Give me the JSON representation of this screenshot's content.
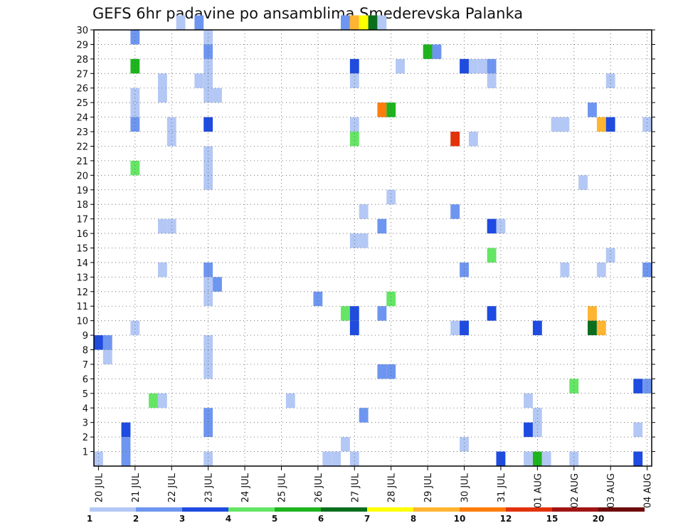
{
  "chart_data": {
    "type": "heatmap",
    "title": "GEFS 6hr padavine po ansamblima Smederevska Palanka",
    "xlabel": "",
    "ylabel": "",
    "x_ticks": [
      "20 JUL",
      "21 JUL",
      "22 JUL",
      "23 JUL",
      "24 JUL",
      "25 JUL",
      "26 JUL",
      "27 JUL",
      "28 JUL",
      "29 JUL",
      "30 JUL",
      "31 JUL",
      "01 AUG",
      "02 AUG",
      "03 AUG",
      "04 AUG"
    ],
    "x_range": [
      0,
      61
    ],
    "y_ticks": [
      1,
      2,
      3,
      4,
      5,
      6,
      7,
      8,
      9,
      10,
      11,
      12,
      13,
      14,
      15,
      16,
      17,
      18,
      19,
      20,
      21,
      22,
      23,
      24,
      25,
      26,
      27,
      28,
      29,
      30
    ],
    "y_range": [
      0,
      30
    ],
    "grid": true,
    "legend": {
      "position": "bottom",
      "labels": [
        "1",
        "2",
        "3",
        "4",
        "5",
        "6",
        "7",
        "8",
        "10",
        "12",
        "15",
        "20"
      ],
      "colors": [
        "#b4c8f5",
        "#6e96f0",
        "#1e4be1",
        "#64e664",
        "#1eb41e",
        "#0a6e1e",
        "#ffff00",
        "#ffb432",
        "#ff7d0a",
        "#e1320a",
        "#a01414",
        "#6e0a0a"
      ],
      "thresholds": [
        1,
        2,
        3,
        4,
        5,
        6,
        7,
        8,
        10,
        12,
        15,
        20
      ]
    },
    "cells": [
      [
        30,
        9,
        1
      ],
      [
        30,
        11,
        2
      ],
      [
        30,
        27,
        2
      ],
      [
        30,
        28,
        8
      ],
      [
        30,
        29,
        7
      ],
      [
        30,
        30,
        6
      ],
      [
        30,
        31,
        1
      ],
      [
        29,
        4,
        2
      ],
      [
        29,
        12,
        1
      ],
      [
        28,
        12,
        2
      ],
      [
        28,
        36,
        5
      ],
      [
        28,
        37,
        2
      ],
      [
        27,
        4,
        5
      ],
      [
        27,
        12,
        1
      ],
      [
        27,
        28,
        3
      ],
      [
        27,
        33,
        1
      ],
      [
        27,
        40,
        3
      ],
      [
        27,
        41,
        1
      ],
      [
        27,
        42,
        1
      ],
      [
        27,
        43,
        2
      ],
      [
        26,
        7,
        1
      ],
      [
        26,
        11,
        1
      ],
      [
        26,
        12,
        1
      ],
      [
        26,
        28,
        1
      ],
      [
        26,
        43,
        1
      ],
      [
        26,
        56,
        1
      ],
      [
        25,
        4,
        1
      ],
      [
        25,
        7,
        1
      ],
      [
        25,
        12,
        1
      ],
      [
        25,
        13,
        1
      ],
      [
        24,
        4,
        1
      ],
      [
        24,
        31,
        10
      ],
      [
        24,
        32,
        5
      ],
      [
        24,
        54,
        2
      ],
      [
        23,
        4,
        2
      ],
      [
        23,
        8,
        1
      ],
      [
        23,
        12,
        3
      ],
      [
        23,
        28,
        1
      ],
      [
        23,
        50,
        1
      ],
      [
        23,
        51,
        1
      ],
      [
        23,
        55,
        8
      ],
      [
        23,
        56,
        3
      ],
      [
        23,
        60,
        1
      ],
      [
        22,
        8,
        1
      ],
      [
        22,
        28,
        4
      ],
      [
        22,
        39,
        12
      ],
      [
        22,
        41,
        1
      ],
      [
        21,
        12,
        1
      ],
      [
        20,
        4,
        4
      ],
      [
        20,
        12,
        1
      ],
      [
        19,
        12,
        1
      ],
      [
        19,
        53,
        1
      ],
      [
        18,
        32,
        1
      ],
      [
        17,
        29,
        1
      ],
      [
        17,
        39,
        2
      ],
      [
        16,
        7,
        1
      ],
      [
        16,
        8,
        1
      ],
      [
        16,
        31,
        2
      ],
      [
        16,
        43,
        3
      ],
      [
        16,
        44,
        1
      ],
      [
        15,
        28,
        1
      ],
      [
        15,
        29,
        1
      ],
      [
        14,
        43,
        4
      ],
      [
        14,
        56,
        1
      ],
      [
        13,
        7,
        1
      ],
      [
        13,
        12,
        2
      ],
      [
        13,
        40,
        2
      ],
      [
        13,
        51,
        1
      ],
      [
        13,
        55,
        1
      ],
      [
        13,
        60,
        2
      ],
      [
        12,
        12,
        1
      ],
      [
        12,
        13,
        2
      ],
      [
        11,
        12,
        1
      ],
      [
        11,
        24,
        2
      ],
      [
        11,
        32,
        4
      ],
      [
        10,
        27,
        4
      ],
      [
        10,
        28,
        3
      ],
      [
        10,
        31,
        2
      ],
      [
        10,
        43,
        3
      ],
      [
        10,
        54,
        8
      ],
      [
        9,
        4,
        1
      ],
      [
        9,
        28,
        3
      ],
      [
        9,
        39,
        1
      ],
      [
        9,
        40,
        3
      ],
      [
        9,
        48,
        3
      ],
      [
        9,
        54,
        6
      ],
      [
        9,
        55,
        8
      ],
      [
        8,
        0,
        3
      ],
      [
        8,
        1,
        2
      ],
      [
        8,
        12,
        1
      ],
      [
        7,
        1,
        1
      ],
      [
        7,
        12,
        1
      ],
      [
        6,
        12,
        1
      ],
      [
        6,
        31,
        2
      ],
      [
        6,
        32,
        2
      ],
      [
        5,
        52,
        4
      ],
      [
        5,
        59,
        3
      ],
      [
        5,
        60,
        2
      ],
      [
        4,
        6,
        4
      ],
      [
        4,
        7,
        1
      ],
      [
        4,
        21,
        1
      ],
      [
        4,
        47,
        1
      ],
      [
        3,
        12,
        2
      ],
      [
        3,
        29,
        2
      ],
      [
        3,
        48,
        1
      ],
      [
        2,
        3,
        3
      ],
      [
        2,
        12,
        2
      ],
      [
        2,
        47,
        3
      ],
      [
        2,
        48,
        1
      ],
      [
        2,
        59,
        1
      ],
      [
        1,
        3,
        2
      ],
      [
        1,
        27,
        1
      ],
      [
        1,
        40,
        1
      ],
      [
        0,
        0,
        1
      ],
      [
        0,
        3,
        2
      ],
      [
        0,
        12,
        1
      ],
      [
        0,
        25,
        1
      ],
      [
        0,
        26,
        1
      ],
      [
        0,
        28,
        1
      ],
      [
        0,
        44,
        3
      ],
      [
        0,
        47,
        1
      ],
      [
        0,
        48,
        5
      ],
      [
        0,
        49,
        1
      ],
      [
        0,
        52,
        1
      ],
      [
        0,
        59,
        3
      ]
    ]
  }
}
